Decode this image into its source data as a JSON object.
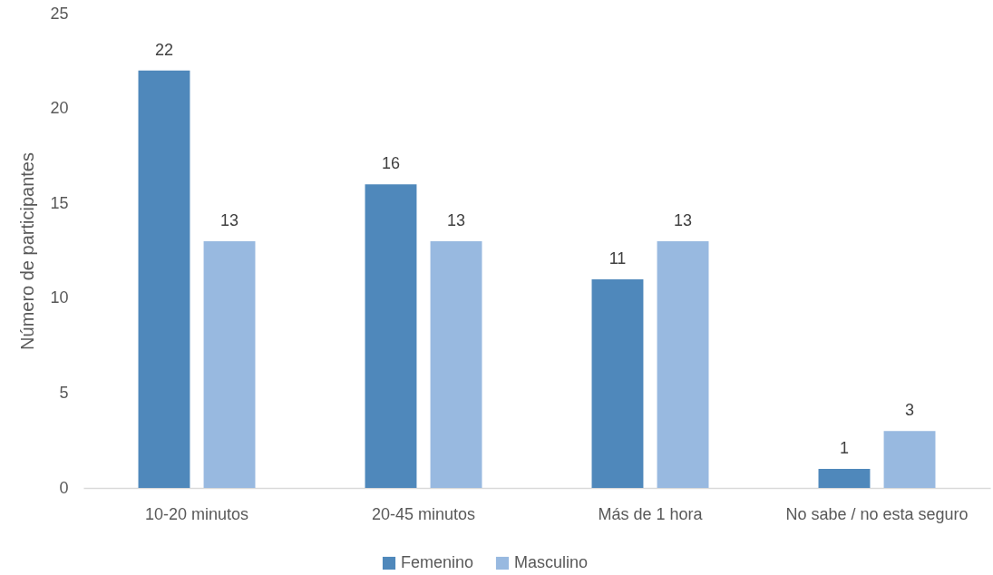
{
  "chart_data": {
    "type": "bar",
    "ylabel": "Número de participantes",
    "categories": [
      "10-20 minutos",
      "20-45 minutos",
      "Más de 1 hora",
      "No sabe / no esta seguro"
    ],
    "series": [
      {
        "name": "Femenino",
        "color": "#4f88bb",
        "values": [
          22,
          16,
          11,
          1
        ]
      },
      {
        "name": "Masculino",
        "color": "#98b9e0",
        "values": [
          13,
          13,
          13,
          3
        ]
      }
    ],
    "ylim": [
      0,
      25
    ],
    "yticks": [
      0,
      5,
      10,
      15,
      20,
      25
    ],
    "grid": false,
    "legend": "bottom",
    "data_labels": true
  }
}
